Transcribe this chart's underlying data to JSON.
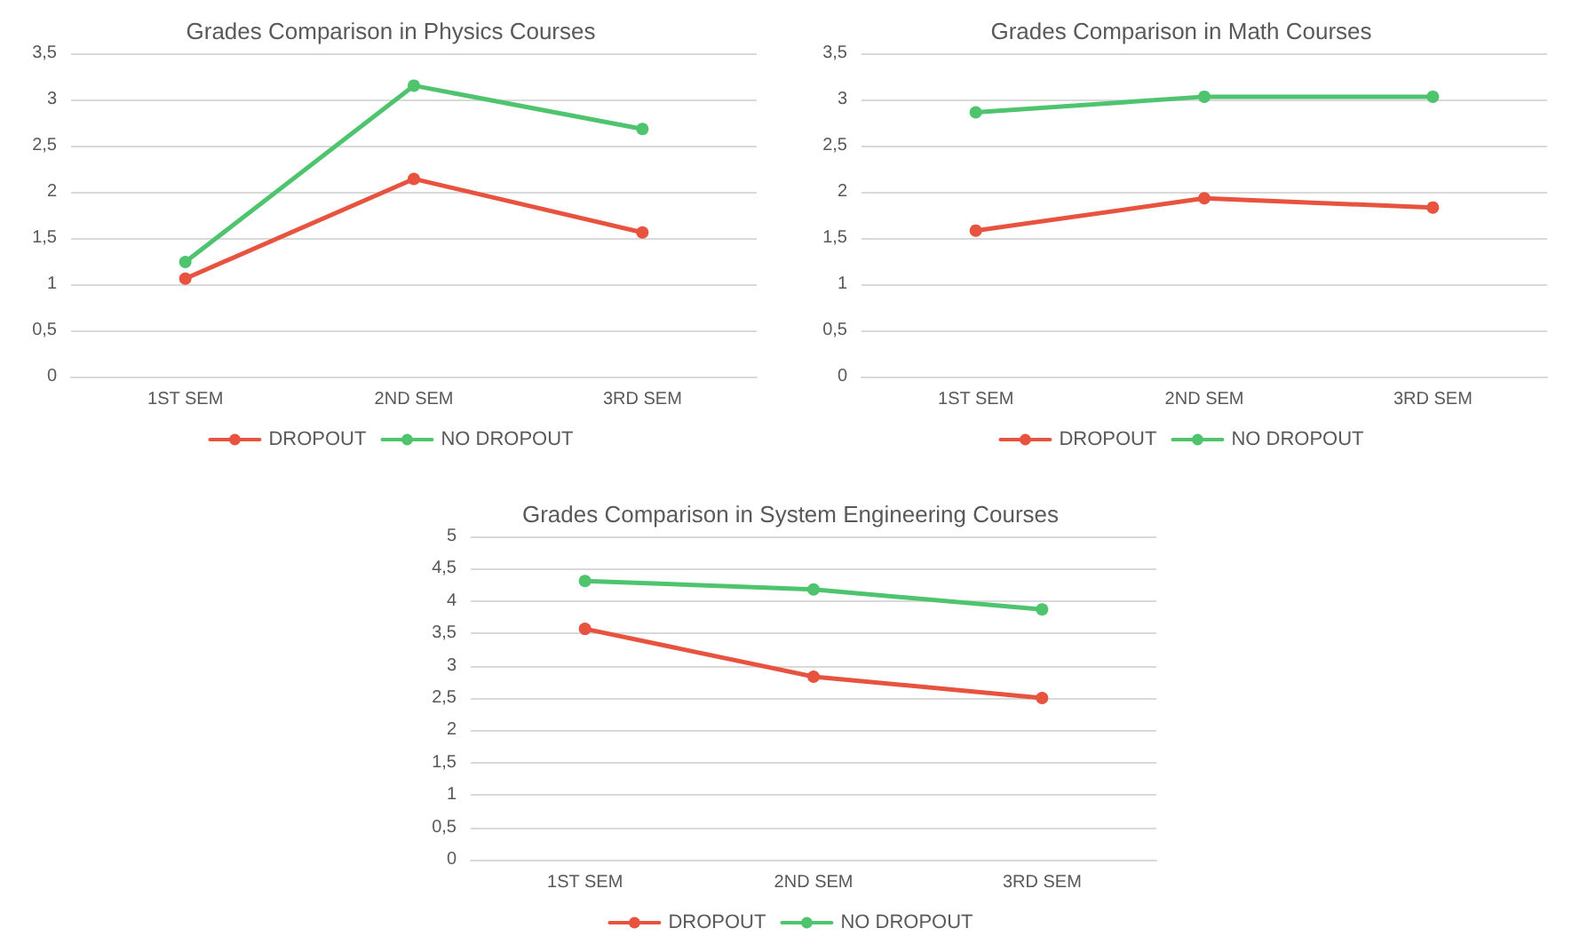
{
  "chart_data": [
    {
      "type": "line",
      "title": "Grades Comparison in Physics Courses",
      "categories": [
        "1ST SEM",
        "2ND SEM",
        "3RD SEM"
      ],
      "series": [
        {
          "name": "DROPOUT",
          "color": "#e8533f",
          "values": [
            1.06,
            2.14,
            1.56
          ]
        },
        {
          "name": "NO DROPOUT",
          "color": "#4fc46e",
          "values": [
            1.24,
            3.15,
            2.68
          ]
        }
      ],
      "ylim": [
        0,
        3.5
      ],
      "yticks": [
        0,
        {
          "value": 0.5,
          "label": "0,5"
        },
        1,
        {
          "value": 1.5,
          "label": "1,5"
        },
        2,
        {
          "value": 2.5,
          "label": "2,5"
        },
        3,
        {
          "value": 3.5,
          "label": "3,5"
        }
      ],
      "grid": "y",
      "legend": "bottom",
      "marker": "circle"
    },
    {
      "type": "line",
      "title": "Grades Comparison in Math Courses",
      "categories": [
        "1ST SEM",
        "2ND SEM",
        "3RD SEM"
      ],
      "series": [
        {
          "name": "DROPOUT",
          "color": "#e8533f",
          "values": [
            1.58,
            1.93,
            1.83
          ]
        },
        {
          "name": "NO DROPOUT",
          "color": "#4fc46e",
          "values": [
            2.86,
            3.03,
            3.03
          ]
        }
      ],
      "ylim": [
        0,
        3.5
      ],
      "yticks": [
        0,
        {
          "value": 0.5,
          "label": "0,5"
        },
        1,
        {
          "value": 1.5,
          "label": "1,5"
        },
        2,
        {
          "value": 2.5,
          "label": "2,5"
        },
        3,
        {
          "value": 3.5,
          "label": "3,5"
        }
      ],
      "grid": "y",
      "legend": "bottom",
      "marker": "circle"
    },
    {
      "type": "line",
      "title": "Grades Comparison in System Engineering Courses",
      "categories": [
        "1ST SEM",
        "2ND SEM",
        "3RD SEM"
      ],
      "series": [
        {
          "name": "DROPOUT",
          "color": "#e8533f",
          "values": [
            3.57,
            2.83,
            2.5
          ]
        },
        {
          "name": "NO DROPOUT",
          "color": "#4fc46e",
          "values": [
            4.31,
            4.18,
            3.87
          ]
        }
      ],
      "ylim": [
        0,
        5
      ],
      "yticks": [
        0,
        {
          "value": 0.5,
          "label": "0,5"
        },
        1,
        {
          "value": 1.5,
          "label": "1,5"
        },
        2,
        {
          "value": 2.5,
          "label": "2,5"
        },
        3,
        {
          "value": 3.5,
          "label": "3,5"
        },
        4,
        {
          "value": 4.5,
          "label": "4,5"
        },
        5
      ],
      "grid": "y",
      "legend": "bottom",
      "marker": "circle"
    }
  ]
}
